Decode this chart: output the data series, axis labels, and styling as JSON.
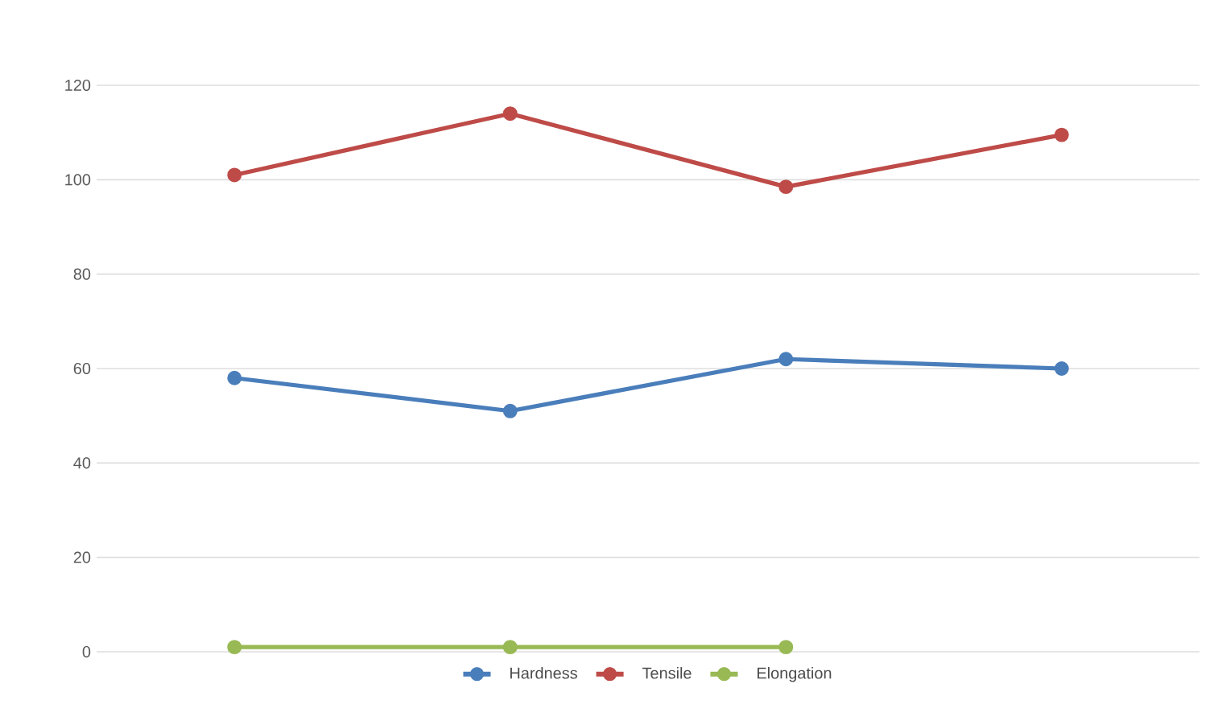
{
  "chart_data": {
    "type": "line",
    "categories": [
      null,
      null,
      null,
      null
    ],
    "series": [
      {
        "name": "Hardness",
        "color": "#4a7ebb",
        "values": [
          58,
          51,
          62,
          60
        ]
      },
      {
        "name": "Tensile",
        "color": "#be4b48",
        "values": [
          101,
          114,
          98.5,
          109.5
        ]
      },
      {
        "name": "Elongation",
        "color": "#98b954",
        "values": [
          1,
          1,
          1,
          null
        ]
      }
    ],
    "ylim": [
      0,
      120
    ],
    "yticks": [
      0,
      20,
      40,
      60,
      80,
      100,
      120
    ],
    "grid": "y",
    "legend": "bottom",
    "marker": "circle",
    "line_style": "solid"
  }
}
